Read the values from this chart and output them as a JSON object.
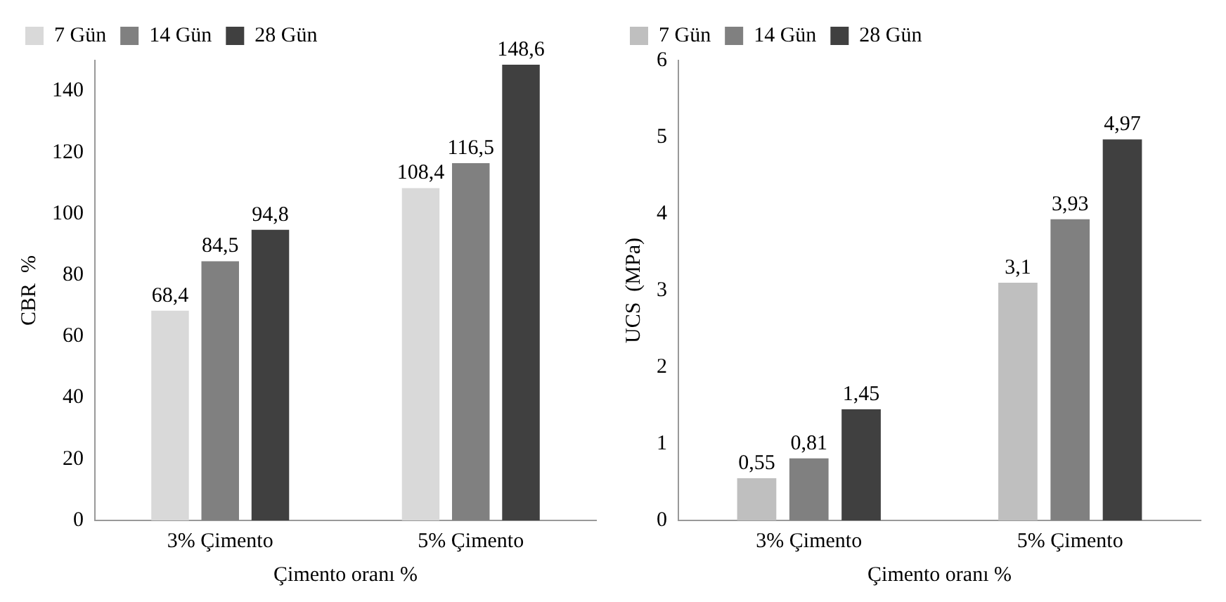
{
  "chart_data": [
    {
      "type": "bar",
      "xlabel": "Çimento oranı %",
      "ylabel": "CBR  %",
      "categories": [
        "3% Çimento",
        "5% Çimento"
      ],
      "series": [
        {
          "name": "7 Gün",
          "color": "#d9d9d9",
          "values": [
            68.4,
            108.4
          ],
          "value_labels": [
            "68,4",
            "108,4"
          ]
        },
        {
          "name": "14 Gün",
          "color": "#808080",
          "values": [
            84.5,
            116.5
          ],
          "value_labels": [
            "84,5",
            "116,5"
          ]
        },
        {
          "name": "28 Gün",
          "color": "#404040",
          "values": [
            94.8,
            148.6
          ],
          "value_labels": [
            "94,8",
            "148,6"
          ]
        }
      ],
      "ylim": [
        0,
        150
      ],
      "yticks": [
        0,
        20,
        40,
        60,
        80,
        100,
        120,
        140
      ],
      "grid": false,
      "legend": "top"
    },
    {
      "type": "bar",
      "xlabel": "Çimento oranı %",
      "ylabel": "UCS  (MPa)",
      "categories": [
        "3% Çimento",
        "5% Çimento"
      ],
      "series": [
        {
          "name": "7 Gün",
          "color": "#bfbfbf",
          "values": [
            0.55,
            3.1
          ],
          "value_labels": [
            "0,55",
            "3,1"
          ]
        },
        {
          "name": "14 Gün",
          "color": "#808080",
          "values": [
            0.81,
            3.93
          ],
          "value_labels": [
            "0,81",
            "3,93"
          ]
        },
        {
          "name": "28 Gün",
          "color": "#404040",
          "values": [
            1.45,
            4.97
          ],
          "value_labels": [
            "1,45",
            "4,97"
          ]
        }
      ],
      "ylim": [
        0,
        6
      ],
      "yticks": [
        0,
        1,
        2,
        3,
        4,
        5,
        6
      ],
      "grid": false,
      "legend": "top"
    }
  ]
}
